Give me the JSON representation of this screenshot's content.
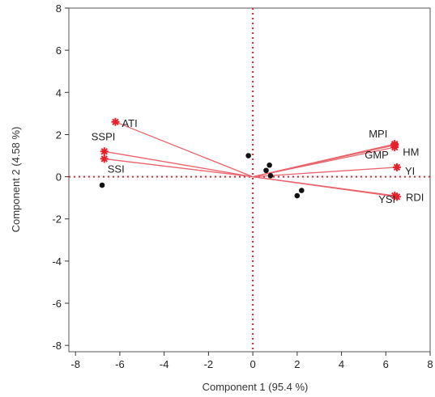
{
  "chart_data": {
    "type": "scatter",
    "subtype": "biplot",
    "title": "",
    "xlabel": "Component 1  (95.4 %)",
    "ylabel": "Component 2  (4.58 %)",
    "xlim": [
      -8.3,
      8
    ],
    "ylim": [
      -8.3,
      8
    ],
    "xticks": [
      -8,
      -6,
      -4,
      -2,
      0,
      2,
      4,
      6,
      8
    ],
    "yticks": [
      -8,
      -6,
      -4,
      -2,
      0,
      2,
      4,
      6,
      8
    ],
    "grid": false,
    "reference_lines": {
      "x": 0,
      "y": 0,
      "style": "dotted",
      "color": "#e8202a"
    },
    "colors": {
      "vector": "#e8636b",
      "marker": "#e8202a",
      "point": "#111111",
      "axis": "#333333"
    },
    "scores": [
      {
        "x": -6.8,
        "y": -0.4
      },
      {
        "x": -0.2,
        "y": 1.0
      },
      {
        "x": 0.6,
        "y": 0.3
      },
      {
        "x": 0.75,
        "y": 0.55
      },
      {
        "x": 0.8,
        "y": 0.05
      },
      {
        "x": 2.0,
        "y": -0.9
      },
      {
        "x": 2.2,
        "y": -0.65
      }
    ],
    "loadings": [
      {
        "name": "ATI",
        "x": -6.2,
        "y": 2.6
      },
      {
        "name": "SSPI",
        "x": -6.7,
        "y": 1.2
      },
      {
        "name": "SSI",
        "x": -6.7,
        "y": 0.85
      },
      {
        "name": "MPI",
        "x": 6.4,
        "y": 1.55
      },
      {
        "name": "GMP",
        "x": 6.4,
        "y": 1.4
      },
      {
        "name": "HM",
        "x": 6.4,
        "y": 1.5
      },
      {
        "name": "YI",
        "x": 6.5,
        "y": 0.45
      },
      {
        "name": "YSI",
        "x": 6.4,
        "y": -0.9
      },
      {
        "name": "RDI",
        "x": 6.5,
        "y": -0.95
      }
    ]
  }
}
